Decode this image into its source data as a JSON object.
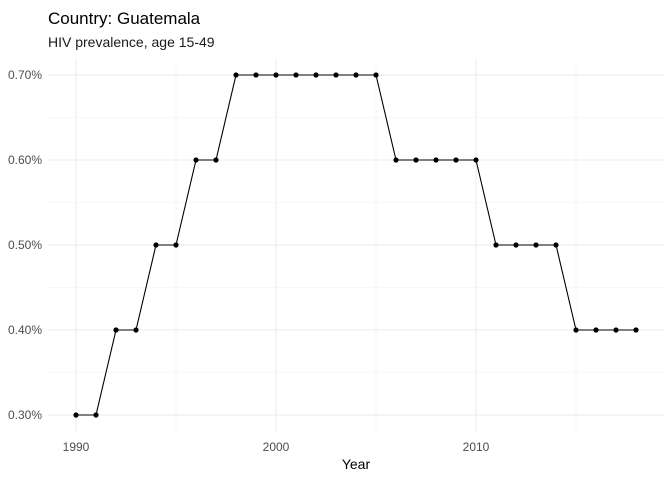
{
  "chart_data": {
    "type": "line",
    "title": "Country: Guatemala",
    "subtitle": "HIV prevalence, age 15-49",
    "xlabel": "Year",
    "ylabel": "",
    "xlim": [
      1990,
      2018
    ],
    "ylim": [
      0.3,
      0.7
    ],
    "x_ticks": [
      1990,
      2000,
      2010
    ],
    "x_tick_labels": [
      "1990",
      "2000",
      "2010"
    ],
    "y_ticks": [
      0.3,
      0.4,
      0.5,
      0.6,
      0.7
    ],
    "y_tick_labels": [
      "0.30%",
      "0.40%",
      "0.50%",
      "0.60%",
      "0.70%"
    ],
    "grid": true,
    "legend": "none",
    "series": [
      {
        "color": "#000000",
        "x": [
          1990,
          1991,
          1992,
          1993,
          1994,
          1995,
          1996,
          1997,
          1998,
          1999,
          2000,
          2001,
          2002,
          2003,
          2004,
          2005,
          2006,
          2007,
          2008,
          2009,
          2010,
          2011,
          2012,
          2013,
          2014,
          2015,
          2016,
          2017,
          2018
        ],
        "values": [
          0.3,
          0.3,
          0.4,
          0.4,
          0.5,
          0.5,
          0.6,
          0.6,
          0.7,
          0.7,
          0.7,
          0.7,
          0.7,
          0.7,
          0.7,
          0.7,
          0.6,
          0.6,
          0.6,
          0.6,
          0.6,
          0.5,
          0.5,
          0.5,
          0.5,
          0.4,
          0.4,
          0.4,
          0.4
        ]
      }
    ]
  }
}
